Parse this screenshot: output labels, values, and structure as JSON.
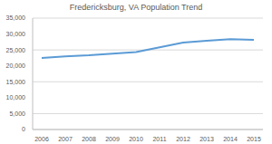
{
  "chart_data": {
    "type": "line",
    "title": "Fredericksburg, VA Population Trend",
    "categories": [
      "2006",
      "2007",
      "2008",
      "2009",
      "2010",
      "2011",
      "2012",
      "2013",
      "2014",
      "2015"
    ],
    "values": [
      22500,
      23000,
      23300,
      23800,
      24300,
      25800,
      27300,
      27900,
      28400,
      28200
    ],
    "color": "#5b9bd5",
    "ylim": [
      0,
      35000
    ],
    "yticks": [
      0,
      {
        "value": 5000,
        "label": "5,000"
      },
      {
        "value": 10000,
        "label": "10,000"
      },
      {
        "value": 15000,
        "label": "15,000"
      },
      {
        "value": 20000,
        "label": "20,000"
      },
      {
        "value": 25000,
        "label": "25,000"
      },
      {
        "value": 30000,
        "label": "30,000"
      },
      {
        "value": 35000,
        "label": "35,000"
      }
    ],
    "grid": true
  }
}
